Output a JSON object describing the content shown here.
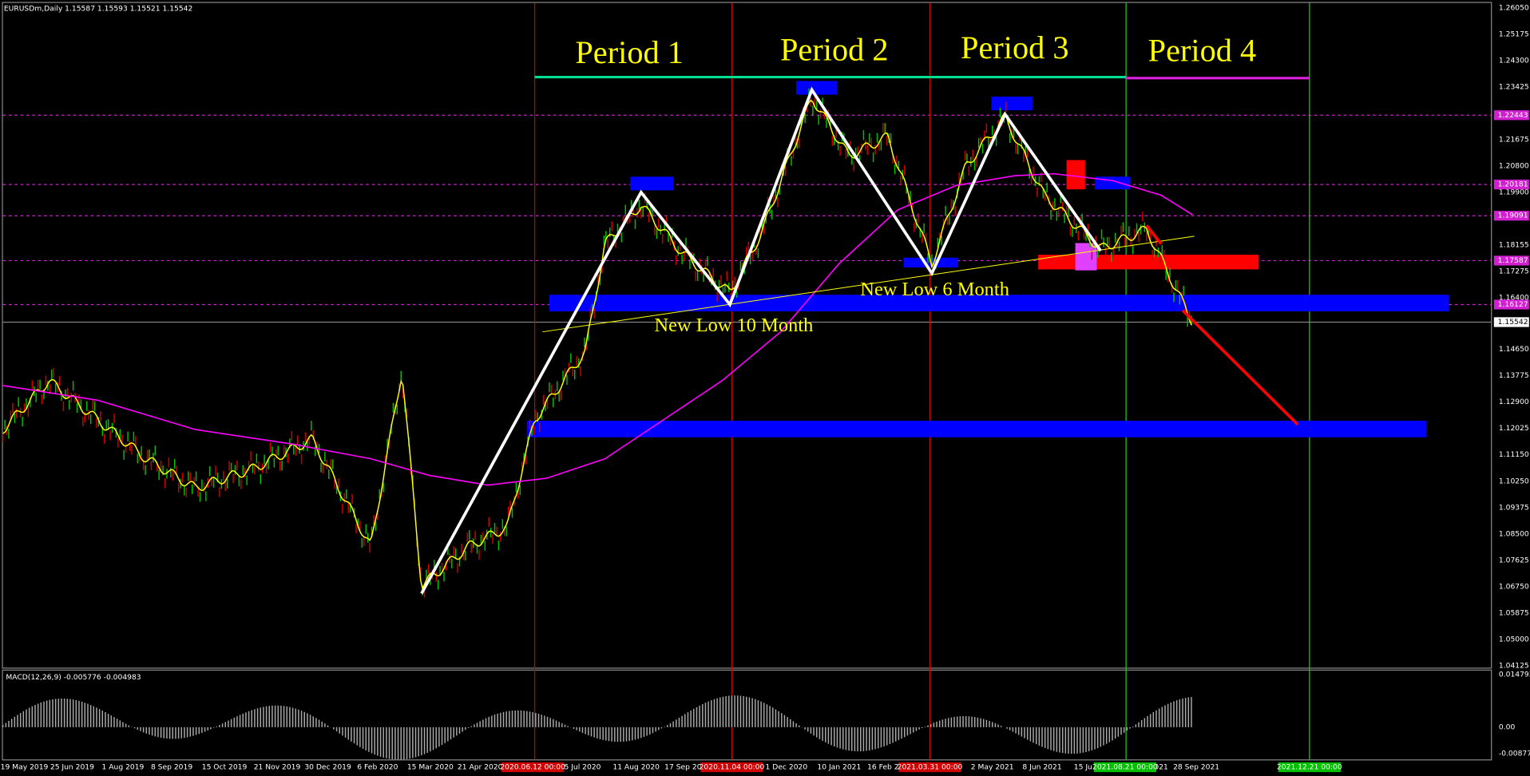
{
  "header": "EURUSDm,Daily  1.15587 1.15593 1.15521 1.15542",
  "macd_label": "MACD(12,26,9) -0.005776 -0.004983",
  "periods": [
    "Period 1",
    "Period 2",
    "Period 3",
    "Period 4"
  ],
  "annotations": [
    "New Low 10 Month",
    "New Low 6 Month"
  ],
  "price_axis": [
    "1.26050",
    "1.25175",
    "1.24300",
    "1.23425",
    "1.21675",
    "1.20800",
    "1.19900",
    "1.18155",
    "1.17275",
    "1.16400",
    "1.14650",
    "1.13775",
    "1.12900",
    "1.12025",
    "1.11150",
    "1.10250",
    "1.09375",
    "1.08500",
    "1.07625",
    "1.06750",
    "1.05875",
    "1.05000",
    "1.04125"
  ],
  "level_labels": [
    "1.22443",
    "1.20181",
    "1.19091",
    "1.17587",
    "1.16127"
  ],
  "current_price": "1.15542",
  "macd_axis": [
    "0.014792",
    "0.00",
    "-0.008775"
  ],
  "dates": [
    "19 May 2019",
    "25 Jun 2019",
    "1 Aug 2019",
    "8 Sep 2019",
    "15 Oct 2019",
    "21 Nov 2019",
    "30 Dec 2019",
    "6 Feb 2020",
    "15 Mar 2020",
    "21 Apr 2020",
    "5 Jul 2020",
    "11 Aug 2020",
    "17 Sep 20",
    "1 Dec 2020",
    "10 Jan 2021",
    "16 Feb 2",
    "2 May 2021",
    "8 Jun 2021",
    "15 Ju",
    "021",
    "28 Sep 2021"
  ],
  "date_markers": [
    "2020.06.12 00:00",
    "2020.11.04 00:00",
    "2021.03.31 00:00",
    "2021.08.21 00:00",
    "2021.12.21 00:00"
  ]
}
